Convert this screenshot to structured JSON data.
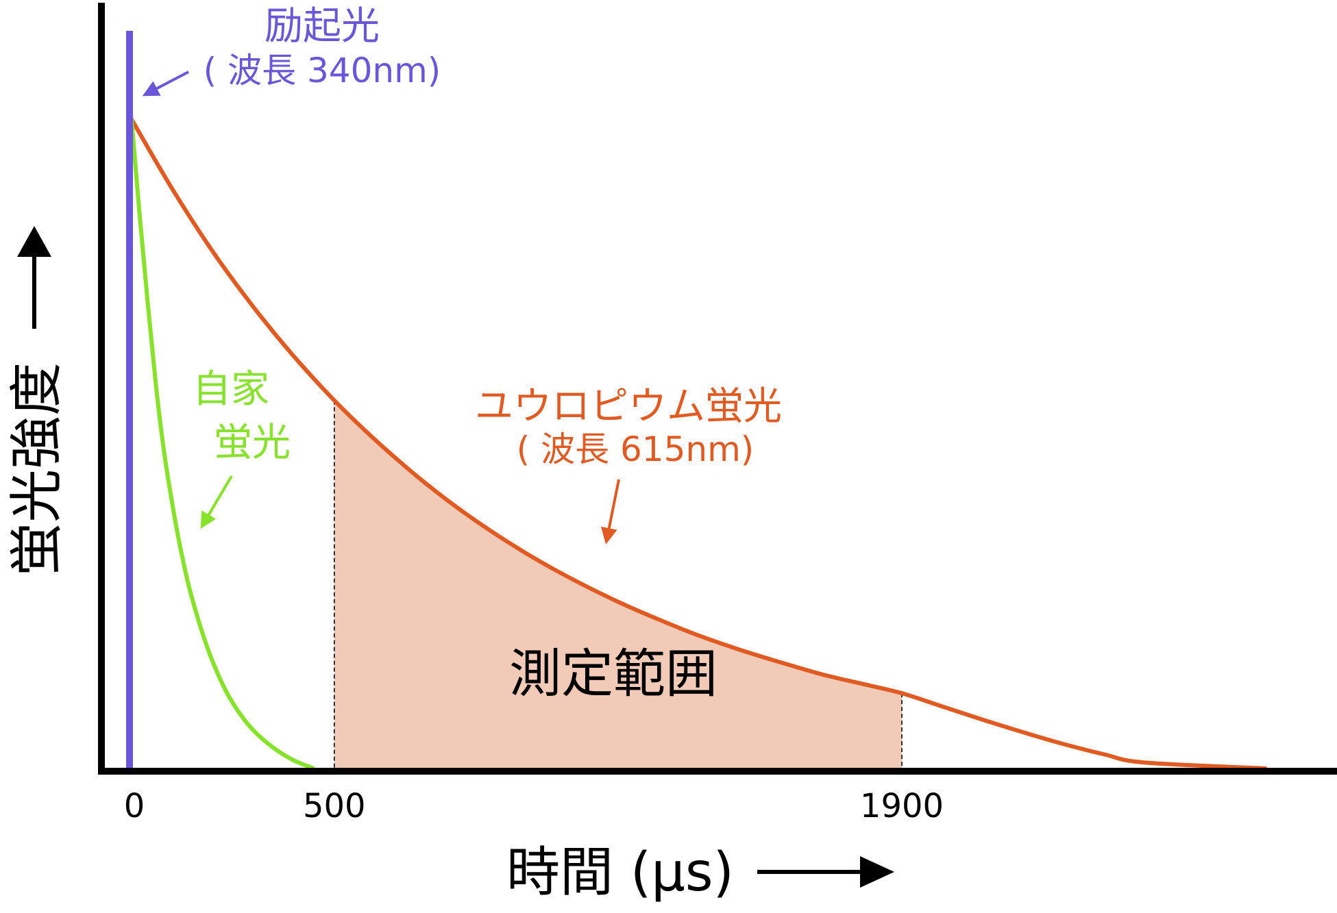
{
  "chart_data": {
    "type": "line",
    "title": "",
    "xlabel": "時間 (µs)",
    "ylabel": "蛍光強度",
    "xlim": [
      -20,
      2700
    ],
    "ylim": [
      0,
      100
    ],
    "x_ticks": [
      {
        "value": 0,
        "label": "0"
      },
      {
        "value": 500,
        "label": "500"
      },
      {
        "value": 1900,
        "label": "1900"
      }
    ],
    "grid": false,
    "legend": "none",
    "series": [
      {
        "name": "ユウロピウム蛍光",
        "sublabel": "( 波長 615nm)",
        "color": "#e05a22",
        "x": [
          0,
          100,
          200,
          300,
          400,
          500,
          600,
          700,
          800,
          900,
          1000,
          1100,
          1200,
          1300,
          1400,
          1500,
          1600,
          1700,
          1800,
          1900,
          2000,
          2100,
          2200,
          2300,
          2400,
          2500,
          2800
        ],
        "y": [
          88,
          78.6,
          70.1,
          62.6,
          55.9,
          49.9,
          44.6,
          39.8,
          35.5,
          31.7,
          28.3,
          25.3,
          22.6,
          20.2,
          18.0,
          16.1,
          14.4,
          12.8,
          11.5,
          10.2,
          8.4,
          6.6,
          4.9,
          3.3,
          1.9,
          0.8,
          0
        ]
      },
      {
        "name": "自家",
        "name_line2": "蛍光",
        "color": "#86e22a",
        "x": [
          0,
          20,
          40,
          60,
          80,
          100,
          120,
          140,
          160,
          180,
          200,
          230,
          260,
          300,
          350,
          400,
          450
        ],
        "y": [
          88,
          75,
          63,
          52,
          43,
          36,
          30,
          25,
          21,
          17.5,
          14.5,
          10.8,
          8,
          5.2,
          2.8,
          1.1,
          0
        ]
      },
      {
        "name": "励起光",
        "sublabel": "( 波長 340nm)",
        "color": "#6a56d8",
        "x": [
          0,
          0
        ],
        "y": [
          0,
          100
        ]
      }
    ],
    "shaded_region": {
      "label": "測定範囲",
      "x_start": 500,
      "x_end": 1900,
      "fill": "#f2cab8"
    }
  }
}
